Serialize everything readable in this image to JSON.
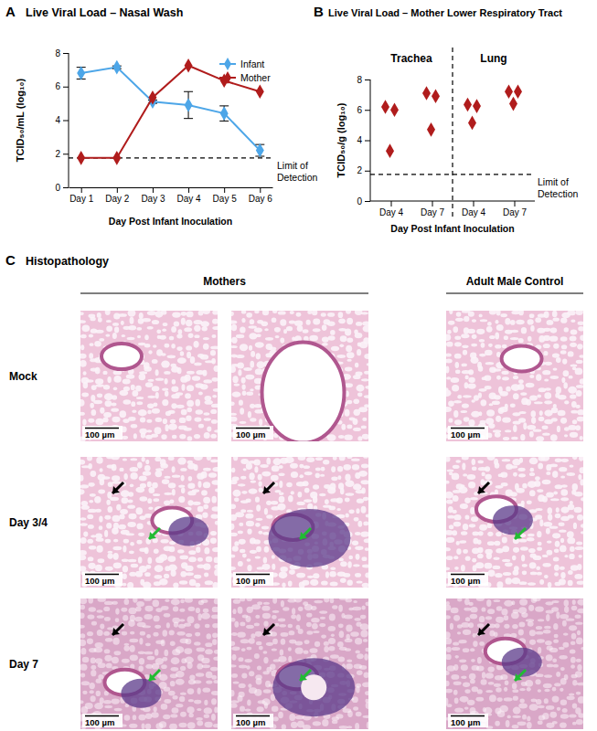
{
  "chart_data": [
    {
      "type": "line",
      "panel_label": "A",
      "title": "Live Viral Load – Nasal Wash",
      "x_label": "Day Post Infant Inoculation",
      "y_label": "TCID₅₀/mL (log₁₀)",
      "categories": [
        "Day 1",
        "Day 2",
        "Day 3",
        "Day 4",
        "Day 5",
        "Day 6"
      ],
      "series": [
        {
          "name": "Infant",
          "color": "#4da6e8",
          "marker": "diamond",
          "values": [
            6.8,
            7.15,
            5.1,
            4.9,
            4.4,
            2.2
          ],
          "errors": [
            0.35,
            0.08,
            0.1,
            0.8,
            0.45,
            0.35
          ]
        },
        {
          "name": "Mother",
          "color": "#b01c1c",
          "marker": "diamond",
          "values": [
            1.75,
            1.75,
            5.35,
            7.25,
            6.35,
            5.7
          ]
        }
      ],
      "ylim": [
        0,
        8
      ],
      "yticks": [
        0,
        2,
        4,
        6,
        8
      ],
      "legend": "top-right",
      "annotations": [
        {
          "label": [
            "Limit of",
            "Detection"
          ],
          "y": 1.75
        }
      ]
    },
    {
      "type": "scatter",
      "panel_label": "B",
      "title": "Live Viral Load – Mother Lower Respiratory Tract",
      "x_label": "Day Post Infant  Inoculation",
      "y_label": "TCID₅₀/g (log₁₀)",
      "groups": [
        "Trachea",
        "Lung"
      ],
      "categories": [
        "Day 4",
        "Day 7",
        "Day 4",
        "Day 7"
      ],
      "values": [
        [
          6.2,
          6.0,
          3.3
        ],
        [
          7.1,
          6.9,
          4.7
        ],
        [
          6.35,
          6.25,
          5.15
        ],
        [
          7.2,
          7.2,
          6.4
        ]
      ],
      "color": "#b01c1c",
      "marker": "diamond",
      "ylim": [
        0,
        8
      ],
      "yticks": [
        0,
        2,
        4,
        6,
        8
      ],
      "annotations": [
        {
          "label": [
            "Limit of",
            "Detection"
          ],
          "y": 1.75
        }
      ]
    }
  ],
  "histopathology": {
    "panel_label": "C",
    "title": "Histopathology",
    "columns": [
      "Mothers",
      "Adult Male Control"
    ],
    "rows": [
      "Mock",
      "Day 3/4",
      "Day 7"
    ],
    "scale_bar": "100 µm"
  }
}
